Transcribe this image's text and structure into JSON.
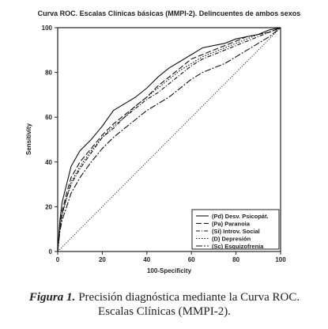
{
  "chart_data": {
    "type": "line",
    "title": "Curva ROC. Escalas Clínicas básicas (MMPI-2). Delincuentes de ambos sexos",
    "xlabel": "100-Specificity",
    "ylabel": "Sensitivity",
    "xlim": [
      0,
      100
    ],
    "ylim": [
      0,
      100
    ],
    "xticks": [
      "0",
      "20",
      "40",
      "60",
      "80",
      "100"
    ],
    "yticks": [
      "0",
      "20",
      "40",
      "60",
      "80",
      "100"
    ],
    "legend_position": "bottom-right",
    "series": [
      {
        "name": "(Pd) Desv. Psicopát.",
        "dash": "solid",
        "x": [
          0,
          1,
          2,
          4,
          6,
          10,
          15,
          20,
          25,
          30,
          35,
          40,
          45,
          50,
          55,
          60,
          65,
          70,
          75,
          80,
          85,
          90,
          95,
          100
        ],
        "y": [
          0,
          14,
          22,
          30,
          38,
          45,
          50,
          56,
          63,
          66,
          69,
          73,
          78,
          82,
          85,
          88,
          91,
          92,
          93,
          95,
          96,
          97,
          99,
          100
        ]
      },
      {
        "name": "(Pa) Paranoia",
        "dash": "longdash",
        "x": [
          0,
          1,
          2,
          4,
          6,
          10,
          15,
          20,
          25,
          30,
          35,
          40,
          45,
          50,
          55,
          60,
          65,
          70,
          75,
          80,
          85,
          90,
          95,
          100
        ],
        "y": [
          0,
          12,
          18,
          26,
          33,
          40,
          46,
          52,
          57,
          61,
          65,
          69,
          74,
          78,
          82,
          86,
          88,
          90,
          92,
          94,
          96,
          97,
          98,
          100
        ]
      },
      {
        "name": "(Si) Introv. Social",
        "dash": "dashdot",
        "x": [
          0,
          1,
          2,
          4,
          6,
          10,
          15,
          20,
          25,
          30,
          35,
          40,
          45,
          50,
          55,
          60,
          65,
          70,
          75,
          80,
          85,
          90,
          95,
          100
        ],
        "y": [
          0,
          11,
          17,
          24,
          30,
          37,
          44,
          51,
          55,
          60,
          64,
          68,
          71,
          75,
          79,
          83,
          86,
          88,
          90,
          92,
          94,
          96,
          98,
          100
        ]
      },
      {
        "name": "(D) Depresión",
        "dash": "dotted",
        "x": [
          0,
          1,
          2,
          4,
          6,
          10,
          15,
          20,
          25,
          30,
          35,
          40,
          45,
          50,
          55,
          60,
          65,
          70,
          75,
          80,
          85,
          90,
          95,
          100
        ],
        "y": [
          0,
          10,
          16,
          24,
          31,
          38,
          45,
          51,
          56,
          60,
          65,
          69,
          73,
          77,
          81,
          84,
          87,
          89,
          91,
          93,
          95,
          97,
          98,
          100
        ]
      },
      {
        "name": "(Sc) Esquizofrenia",
        "dash": "longdashdot",
        "x": [
          0,
          1,
          2,
          4,
          6,
          10,
          15,
          20,
          25,
          30,
          35,
          40,
          45,
          50,
          55,
          60,
          65,
          70,
          75,
          80,
          85,
          90,
          95,
          100
        ],
        "y": [
          0,
          9,
          14,
          20,
          26,
          33,
          40,
          46,
          51,
          55,
          59,
          63,
          66,
          69,
          73,
          77,
          80,
          82,
          84,
          87,
          90,
          93,
          96,
          100
        ]
      }
    ],
    "reference_line": {
      "dash": "fine-dotted",
      "x": [
        0,
        100
      ],
      "y": [
        0,
        100
      ]
    }
  },
  "caption": {
    "label": "Figura 1.",
    "line1": "Precisión diagnóstica mediante la Curva ROC.",
    "line2": "Escalas Clínicas (MMPI-2)."
  }
}
